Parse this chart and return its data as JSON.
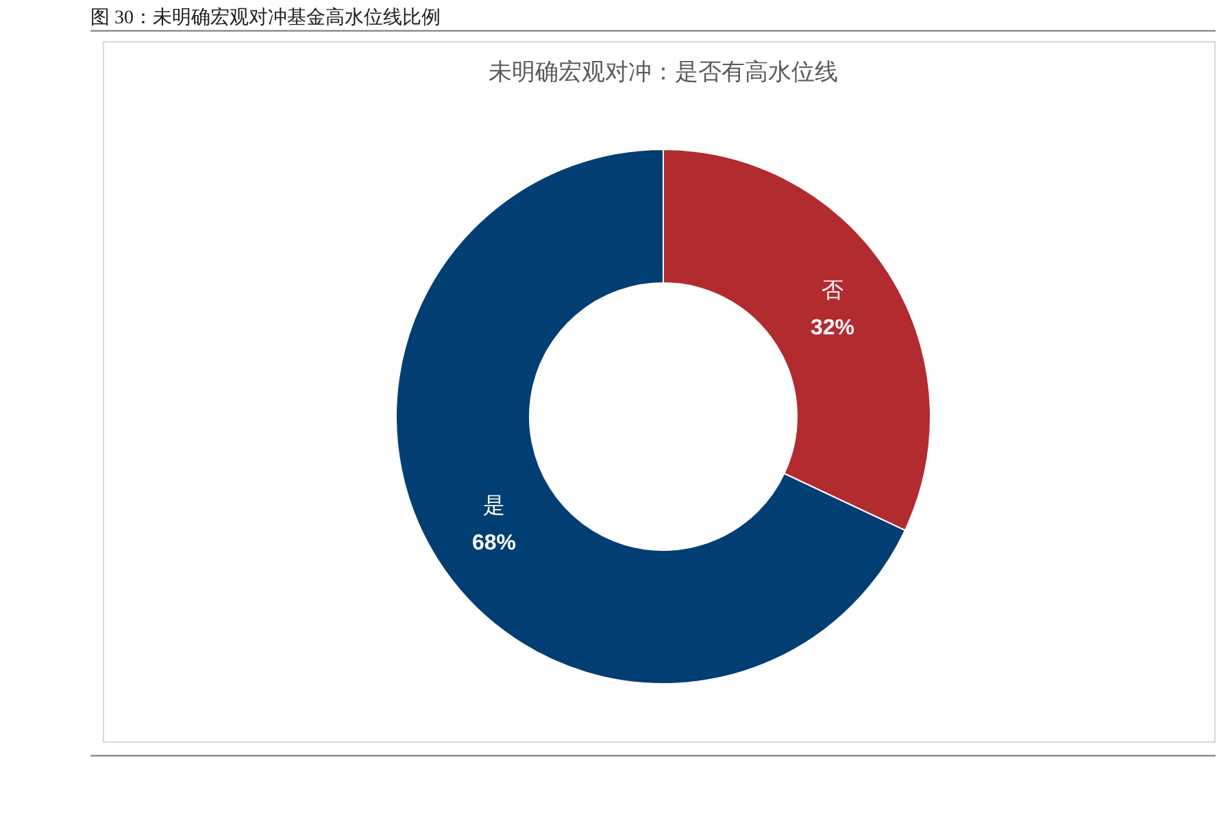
{
  "chart_data": {
    "type": "donut",
    "title": "图 30：未明确宏观对冲基金高水位线比例",
    "subtitle": "未明确宏观对冲：是否有高水位线",
    "categories": [
      "否",
      "是"
    ],
    "values": [
      32,
      68
    ],
    "colors": [
      "#b22b2f",
      "#013e73"
    ],
    "value_labels": [
      "32%",
      "68%"
    ]
  }
}
